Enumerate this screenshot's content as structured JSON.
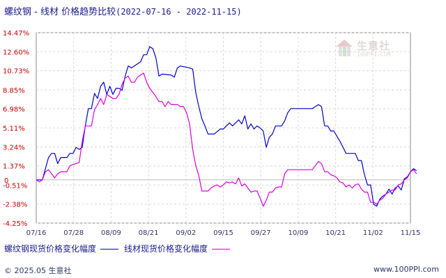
{
  "title": {
    "main": "螺纹钢 - 线材 价格趋势比较",
    "range": "(2022-07-16 - 2022-11-15)"
  },
  "logo": {
    "brand": "生意社",
    "site": "100PPI.COM",
    "icon": "house-logo-icon"
  },
  "legend": [
    {
      "name": "螺纹钢现货价格变化幅度",
      "color": "#0000cc"
    },
    {
      "name": "线材现货价格变化幅度",
      "color": "#dd00dd"
    }
  ],
  "footer": {
    "copyright": "© 2025.05 生意社",
    "site": "www.100PPI.com"
  },
  "chart_data": {
    "type": "line",
    "x_tick_labels": [
      "07/16",
      "07/28",
      "08/09",
      "08/21",
      "09/02",
      "09/15",
      "09/27",
      "10/09",
      "10/21",
      "11/02",
      "11/15"
    ],
    "y_tick_labels": [
      "14.47%",
      "12.60%",
      "10.73%",
      "8.85%",
      "6.98%",
      "5.11%",
      "3.24%",
      "1.37%",
      "-0.51%",
      "-2.38%",
      "-4.25%"
    ],
    "y_ticks": [
      14.47,
      12.6,
      10.73,
      8.85,
      6.98,
      5.11,
      3.24,
      1.37,
      -0.51,
      -2.38,
      -4.25
    ],
    "ylim": [
      -4.25,
      14.47
    ],
    "zero_label": "0",
    "x_range_days": [
      0,
      122
    ],
    "grid": "dashed horizontal and vertical",
    "series": [
      {
        "name": "螺纹钢现货价格变化幅度",
        "color": "#0000cc",
        "points": [
          [
            0,
            0.0
          ],
          [
            2,
            0.0
          ],
          [
            3,
            1.1
          ],
          [
            4,
            2.2
          ],
          [
            5,
            2.6
          ],
          [
            6,
            2.6
          ],
          [
            7,
            1.6
          ],
          [
            8,
            2.2
          ],
          [
            10,
            2.2
          ],
          [
            11,
            2.6
          ],
          [
            12,
            2.6
          ],
          [
            13,
            3.2
          ],
          [
            14,
            3.0
          ],
          [
            15,
            3.2
          ],
          [
            16,
            5.3
          ],
          [
            17,
            7.0
          ],
          [
            18,
            7.0
          ],
          [
            19,
            8.5
          ],
          [
            20,
            8.0
          ],
          [
            21,
            9.2
          ],
          [
            22,
            9.6
          ],
          [
            23,
            8.4
          ],
          [
            24,
            9.2
          ],
          [
            25,
            8.4
          ],
          [
            26,
            9.0
          ],
          [
            27,
            9.0
          ],
          [
            28,
            8.8
          ],
          [
            29,
            10.2
          ],
          [
            30,
            11.2
          ],
          [
            31,
            11.0
          ],
          [
            32,
            11.2
          ],
          [
            33,
            11.4
          ],
          [
            34,
            11.6
          ],
          [
            35,
            12.3
          ],
          [
            36,
            12.3
          ],
          [
            37,
            13.1
          ],
          [
            38,
            12.9
          ],
          [
            39,
            12.0
          ],
          [
            40,
            10.2
          ],
          [
            41,
            10.4
          ],
          [
            44,
            10.3
          ],
          [
            45,
            10.1
          ],
          [
            46,
            11.0
          ],
          [
            47,
            11.2
          ],
          [
            50,
            11.0
          ],
          [
            51,
            10.9
          ],
          [
            52,
            8.6
          ],
          [
            53,
            7.2
          ],
          [
            54,
            6.0
          ],
          [
            55,
            5.3
          ],
          [
            56,
            4.5
          ],
          [
            58,
            4.5
          ],
          [
            60,
            5.0
          ],
          [
            61,
            5.0
          ],
          [
            62,
            5.3
          ],
          [
            63,
            5.6
          ],
          [
            64,
            5.3
          ],
          [
            65,
            5.6
          ],
          [
            66,
            5.9
          ],
          [
            67,
            5.5
          ],
          [
            68,
            6.3
          ],
          [
            69,
            5.0
          ],
          [
            70,
            5.5
          ],
          [
            71,
            5.0
          ],
          [
            72,
            5.3
          ],
          [
            73,
            5.1
          ],
          [
            74,
            4.8
          ],
          [
            75,
            3.2
          ],
          [
            76,
            4.2
          ],
          [
            77,
            4.5
          ],
          [
            78,
            5.3
          ],
          [
            80,
            5.3
          ],
          [
            81,
            5.8
          ],
          [
            82,
            6.6
          ],
          [
            83,
            7.0
          ],
          [
            88,
            7.0
          ],
          [
            90,
            7.0
          ],
          [
            91,
            7.2
          ],
          [
            92,
            7.4
          ],
          [
            93,
            7.2
          ],
          [
            94,
            5.3
          ],
          [
            95,
            5.3
          ],
          [
            96,
            4.8
          ],
          [
            97,
            4.8
          ],
          [
            98,
            4.3
          ],
          [
            99,
            3.8
          ],
          [
            100,
            3.2
          ],
          [
            101,
            2.6
          ],
          [
            102,
            2.6
          ],
          [
            104,
            2.6
          ],
          [
            105,
            1.9
          ],
          [
            106,
            1.9
          ],
          [
            107,
            0.5
          ],
          [
            108,
            -0.5
          ],
          [
            109,
            -0.5
          ],
          [
            110,
            -2.4
          ],
          [
            111,
            -2.6
          ],
          [
            112,
            -1.9
          ],
          [
            113,
            -1.6
          ],
          [
            114,
            -1.4
          ],
          [
            115,
            -0.9
          ],
          [
            116,
            -1.4
          ],
          [
            117,
            -0.8
          ],
          [
            118,
            -0.6
          ],
          [
            119,
            -1.0
          ],
          [
            120,
            0.1
          ],
          [
            121,
            0.3
          ],
          [
            122,
            0.8
          ],
          [
            123,
            1.1
          ],
          [
            124,
            0.9
          ]
        ]
      },
      {
        "name": "线材现货价格变化幅度",
        "color": "#dd00dd",
        "points": [
          [
            0,
            0.0
          ],
          [
            1,
            -0.2
          ],
          [
            2,
            0.0
          ],
          [
            3,
            0.8
          ],
          [
            4,
            1.0
          ],
          [
            5,
            0.6
          ],
          [
            6,
            0.2
          ],
          [
            7,
            0.6
          ],
          [
            8,
            0.8
          ],
          [
            10,
            0.8
          ],
          [
            11,
            1.4
          ],
          [
            12,
            1.5
          ],
          [
            13,
            1.6
          ],
          [
            14,
            1.7
          ],
          [
            15,
            3.8
          ],
          [
            16,
            5.3
          ],
          [
            17,
            5.3
          ],
          [
            18,
            5.3
          ],
          [
            19,
            6.9
          ],
          [
            20,
            7.4
          ],
          [
            21,
            8.0
          ],
          [
            22,
            7.4
          ],
          [
            23,
            8.4
          ],
          [
            24,
            8.2
          ],
          [
            25,
            8.0
          ],
          [
            26,
            8.0
          ],
          [
            27,
            8.4
          ],
          [
            28,
            9.4
          ],
          [
            29,
            10.0
          ],
          [
            30,
            10.2
          ],
          [
            31,
            9.6
          ],
          [
            32,
            9.6
          ],
          [
            33,
            10.1
          ],
          [
            34,
            10.3
          ],
          [
            35,
            10.5
          ],
          [
            36,
            9.6
          ],
          [
            37,
            9.0
          ],
          [
            38,
            8.6
          ],
          [
            39,
            8.2
          ],
          [
            40,
            7.7
          ],
          [
            41,
            7.7
          ],
          [
            42,
            7.2
          ],
          [
            43,
            7.7
          ],
          [
            44,
            7.4
          ],
          [
            46,
            7.4
          ],
          [
            47,
            7.2
          ],
          [
            48,
            7.2
          ],
          [
            49,
            6.6
          ],
          [
            50,
            5.5
          ],
          [
            51,
            3.0
          ],
          [
            52,
            1.4
          ],
          [
            53,
            0.4
          ],
          [
            54,
            -1.1
          ],
          [
            55,
            -1.1
          ],
          [
            56,
            -1.1
          ],
          [
            57,
            -0.8
          ],
          [
            58,
            -0.6
          ],
          [
            59,
            -0.5
          ],
          [
            60,
            -0.7
          ],
          [
            61,
            -0.5
          ],
          [
            62,
            -0.2
          ],
          [
            63,
            -0.3
          ],
          [
            64,
            -0.2
          ],
          [
            65,
            -0.4
          ],
          [
            66,
            0.2
          ],
          [
            67,
            -0.6
          ],
          [
            68,
            -0.4
          ],
          [
            69,
            -0.8
          ],
          [
            70,
            -1.2
          ],
          [
            71,
            -1.1
          ],
          [
            72,
            -1.1
          ],
          [
            73,
            -1.8
          ],
          [
            74,
            -2.6
          ],
          [
            75,
            -2.0
          ],
          [
            76,
            -1.2
          ],
          [
            77,
            -1.2
          ],
          [
            78,
            -0.8
          ],
          [
            79,
            -0.7
          ],
          [
            80,
            -0.7
          ],
          [
            81,
            0.6
          ],
          [
            82,
            1.0
          ],
          [
            88,
            1.0
          ],
          [
            90,
            1.0
          ],
          [
            91,
            1.4
          ],
          [
            92,
            1.8
          ],
          [
            93,
            1.6
          ],
          [
            94,
            0.8
          ],
          [
            95,
            0.8
          ],
          [
            96,
            0.5
          ],
          [
            97,
            0.4
          ],
          [
            98,
            0.2
          ],
          [
            99,
            -0.2
          ],
          [
            100,
            -0.3
          ],
          [
            101,
            -0.7
          ],
          [
            102,
            -0.5
          ],
          [
            103,
            -0.8
          ],
          [
            104,
            -0.5
          ],
          [
            105,
            -0.4
          ],
          [
            106,
            -0.9
          ],
          [
            107,
            -1.2
          ],
          [
            108,
            -1.2
          ],
          [
            109,
            -2.2
          ],
          [
            110,
            -2.2
          ],
          [
            111,
            -2.4
          ],
          [
            112,
            -2.0
          ],
          [
            113,
            -1.8
          ],
          [
            114,
            -1.4
          ],
          [
            115,
            -1.2
          ],
          [
            116,
            -1.0
          ],
          [
            117,
            -1.0
          ],
          [
            118,
            -0.5
          ],
          [
            119,
            -0.4
          ],
          [
            120,
            0.0
          ],
          [
            121,
            0.2
          ],
          [
            122,
            0.8
          ],
          [
            123,
            1.0
          ],
          [
            124,
            0.6
          ]
        ]
      }
    ]
  }
}
